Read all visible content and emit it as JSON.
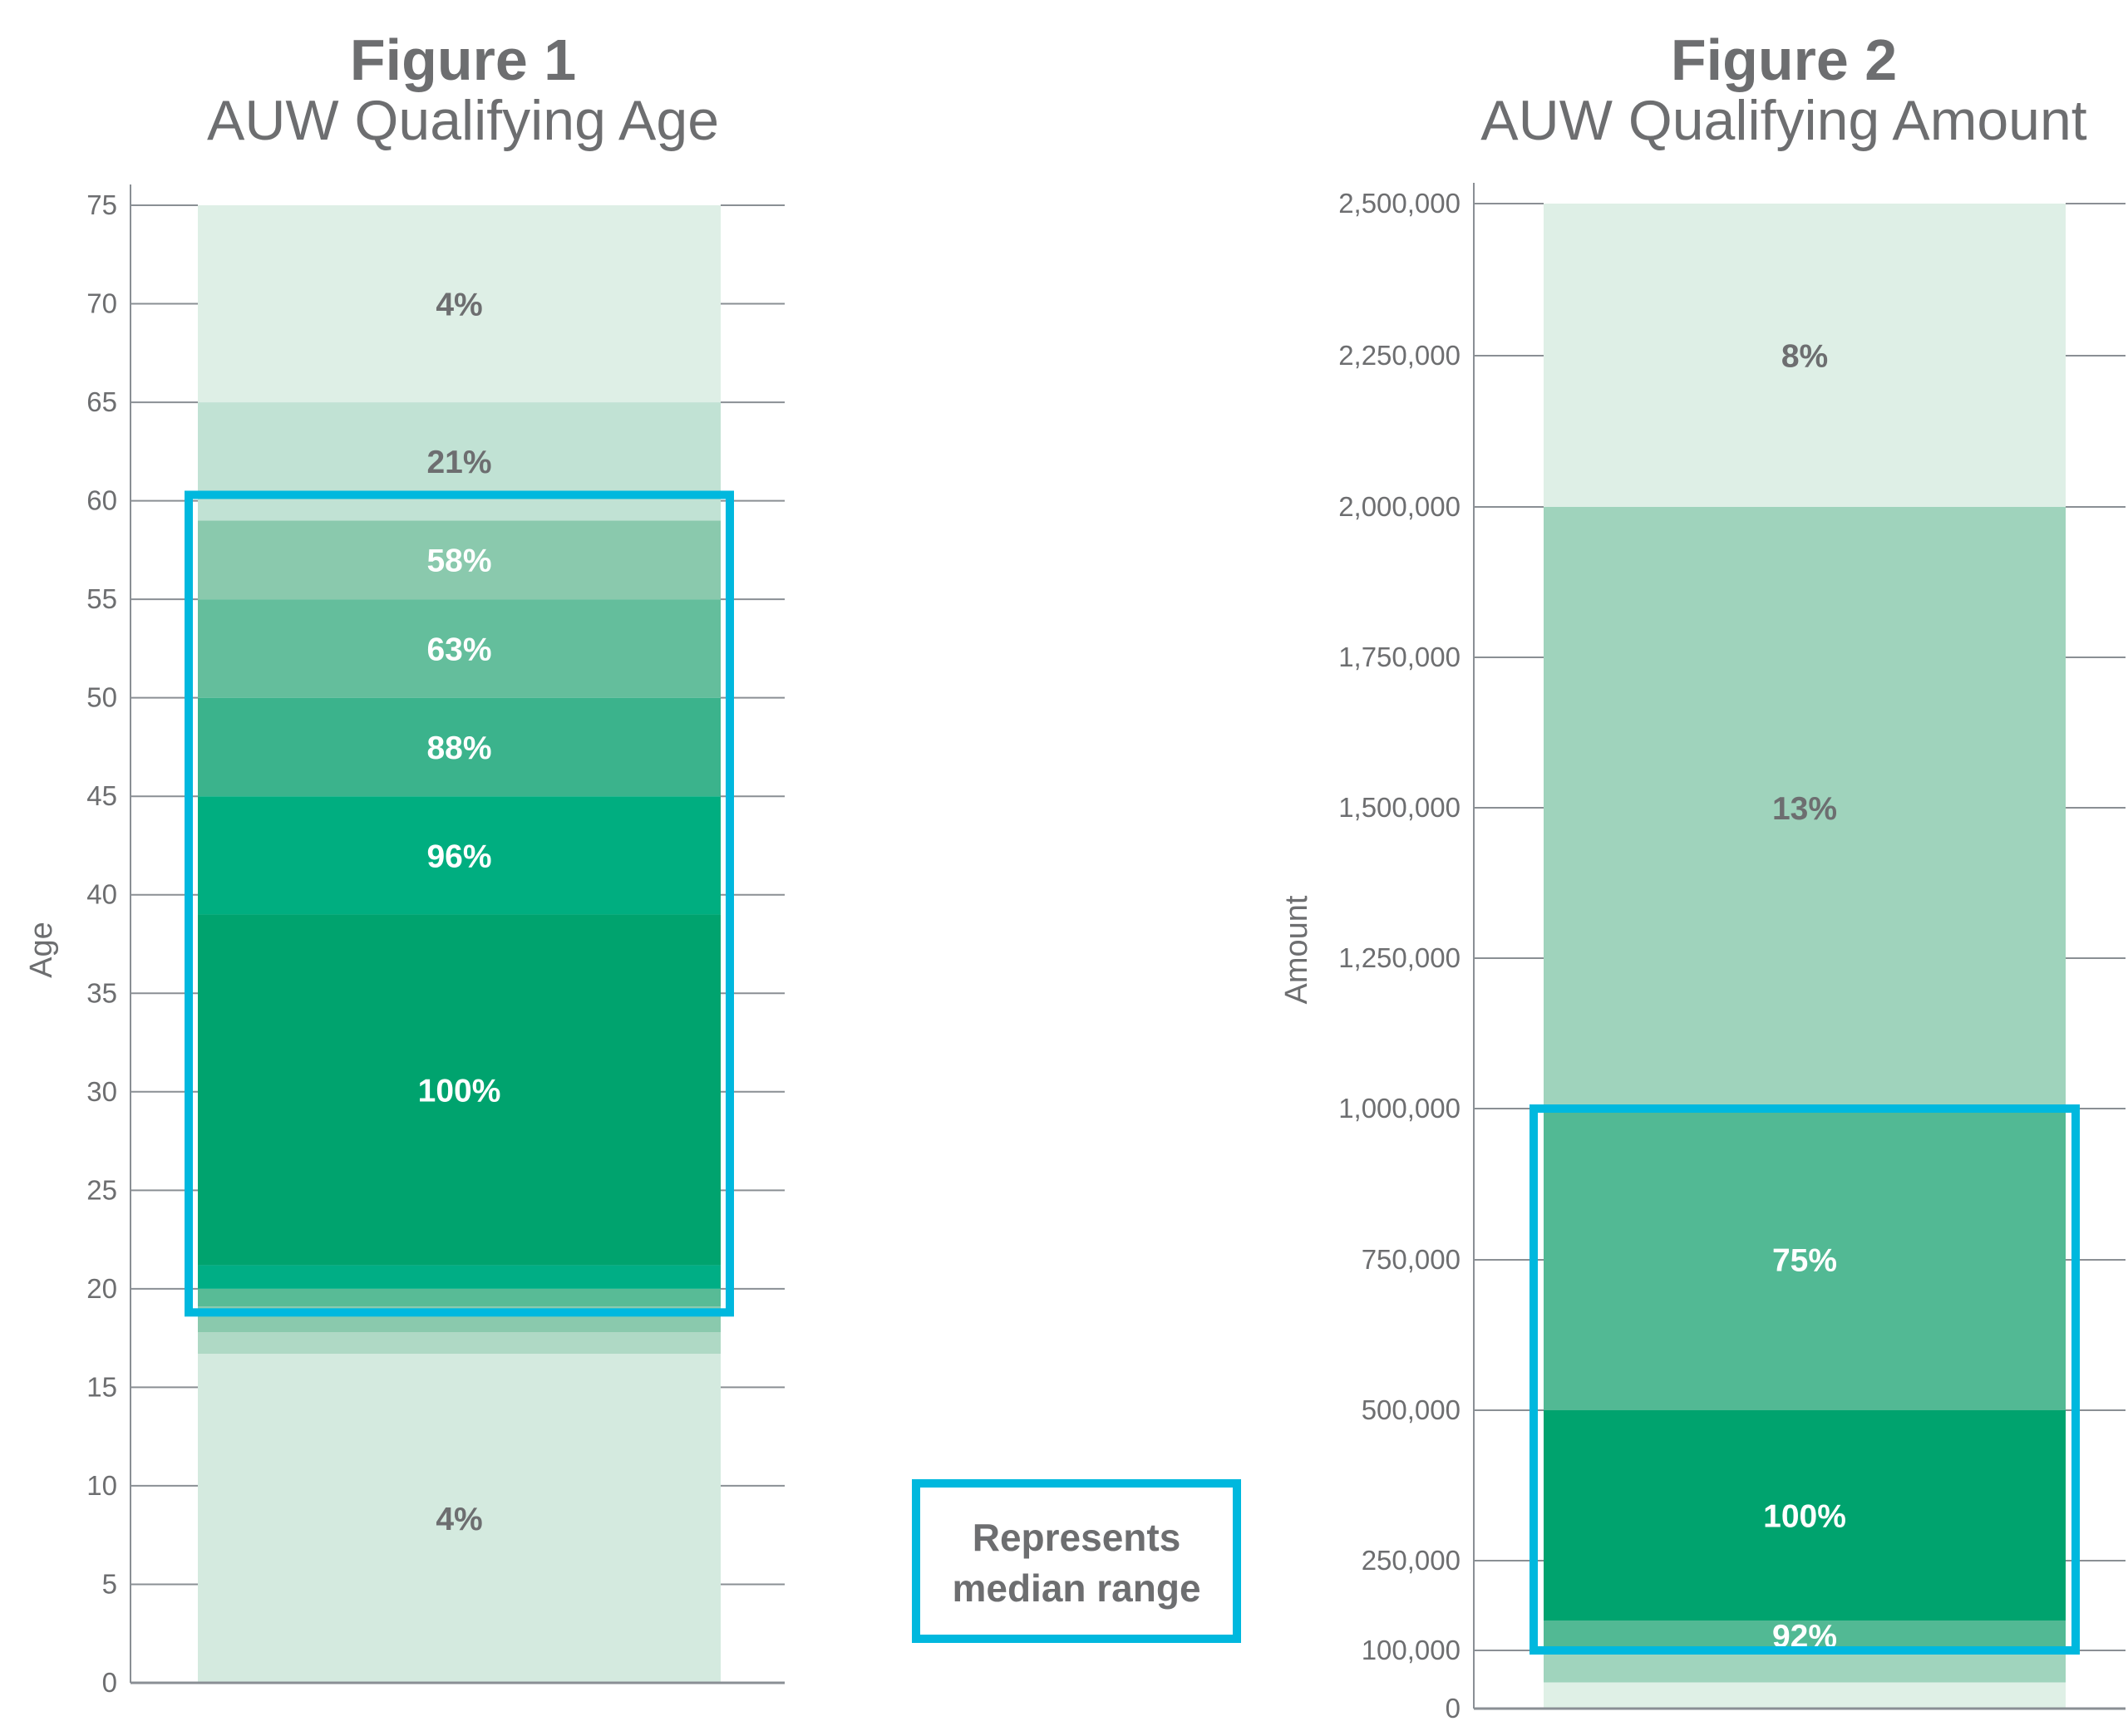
{
  "chart_data": [
    {
      "type": "bar",
      "stacked": true,
      "title": "Figure 1",
      "subtitle": "AUW Qualifying Age",
      "ylabel": "Age",
      "ylim": [
        0,
        75
      ],
      "yticks": [
        0,
        5,
        10,
        15,
        20,
        25,
        30,
        35,
        40,
        45,
        50,
        55,
        60,
        65,
        70,
        75
      ],
      "ytick_labels": [
        "0",
        "5",
        "10",
        "15",
        "20",
        "25",
        "30",
        "35",
        "40",
        "45",
        "50",
        "55",
        "60",
        "65",
        "70",
        "75"
      ],
      "bands": [
        {
          "from": 0,
          "to": 16.7,
          "label": "4%",
          "color": "#d4eadf",
          "text_color": "#6d6e70"
        },
        {
          "from": 16.7,
          "to": 17.8,
          "label": "",
          "color": "#afd9c5",
          "text_color": "#6d6e70"
        },
        {
          "from": 17.8,
          "to": 19.1,
          "label": "",
          "color": "#8ac9ad",
          "text_color": "#ffffff"
        },
        {
          "from": 19.1,
          "to": 20,
          "label": "",
          "color": "#58bb96",
          "text_color": "#ffffff"
        },
        {
          "from": 20,
          "to": 21.2,
          "label": "",
          "color": "#00ae85",
          "text_color": "#ffffff"
        },
        {
          "from": 21.2,
          "to": 39,
          "label": "100%",
          "color": "#00a36e",
          "text_color": "#ffffff"
        },
        {
          "from": 39,
          "to": 45,
          "label": "96%",
          "color": "#00ae80",
          "text_color": "#ffffff"
        },
        {
          "from": 45,
          "to": 50,
          "label": "88%",
          "color": "#3bb38c",
          "text_color": "#ffffff"
        },
        {
          "from": 50,
          "to": 55,
          "label": "63%",
          "color": "#64be9c",
          "text_color": "#ffffff"
        },
        {
          "from": 55,
          "to": 59,
          "label": "58%",
          "color": "#8ac9ad",
          "text_color": "#ffffff"
        },
        {
          "from": 59,
          "to": 65,
          "label": "21%",
          "color": "#c1e2d4",
          "text_color": "#6d6e70"
        },
        {
          "from": 65,
          "to": 75,
          "label": "4%",
          "color": "#deefe6",
          "text_color": "#6d6e70"
        }
      ],
      "median_range": [
        18.8,
        60.3
      ]
    },
    {
      "type": "bar",
      "stacked": true,
      "title": "Figure 2",
      "subtitle": "AUW Qualifying Amount",
      "ylabel": "Amount",
      "ylim": [
        0,
        2500000
      ],
      "yticks": [
        0,
        100000,
        250000,
        500000,
        750000,
        1000000,
        1250000,
        1500000,
        1750000,
        2000000,
        2250000,
        2500000
      ],
      "ytick_labels": [
        "0",
        "100,000",
        "250,000",
        "500,000",
        "750,000",
        "1,000,000",
        "1,250,000",
        "1,500,000",
        "1,750,000",
        "2,000,000",
        "2,250,000",
        "2,500,000"
      ],
      "bands": [
        {
          "from": 0,
          "to": 45000,
          "label": "",
          "color": "#dff0e6",
          "text_color": "#6d6e70"
        },
        {
          "from": 45000,
          "to": 100000,
          "label": "",
          "color": "#a0d4bd",
          "text_color": "#6d6e70"
        },
        {
          "from": 100000,
          "to": 150000,
          "label": "92%",
          "color": "#52b994",
          "text_color": "#ffffff"
        },
        {
          "from": 150000,
          "to": 500000,
          "label": "100%",
          "color": "#00a36e",
          "text_color": "#ffffff"
        },
        {
          "from": 500000,
          "to": 1000000,
          "label": "75%",
          "color": "#52b994",
          "text_color": "#ffffff"
        },
        {
          "from": 1000000,
          "to": 2000000,
          "label": "13%",
          "color": "#9fd3bc",
          "text_color": "#6d6e70"
        },
        {
          "from": 2000000,
          "to": 2500000,
          "label": "8%",
          "color": "#deefe6",
          "text_color": "#6d6e70"
        }
      ],
      "median_range": [
        100000,
        1000000
      ]
    }
  ],
  "legend": {
    "line1": "Represents",
    "line2": "median range",
    "color": "#00b8de"
  },
  "colors": {
    "axis": "#8a8f94",
    "text": "#6d6e70",
    "median": "#00b8de"
  }
}
